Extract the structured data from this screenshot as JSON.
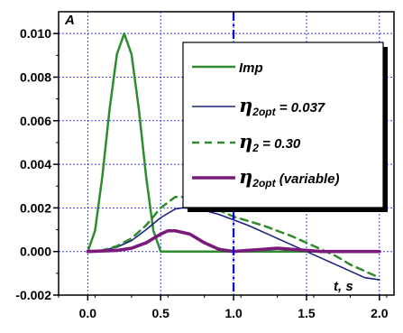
{
  "chart_data": {
    "type": "line",
    "title": "",
    "xlabel": "t, s",
    "ylabel": "A",
    "xlim": [
      -0.2,
      2.1
    ],
    "ylim": [
      -0.002,
      0.011
    ],
    "x_ticks": [
      "0.0",
      "0.5",
      "1.0",
      "1.5",
      "2.0"
    ],
    "y_ticks": [
      "-0.002",
      "0.000",
      "0.002",
      "0.004",
      "0.006",
      "0.008",
      "0.010"
    ],
    "grid": true,
    "vertical_marker_x": 1.0,
    "legend_placement": "top-right",
    "colors": {
      "imp": "#2e8b2e",
      "eta_opt": "#1a237e",
      "eta_fixed": "#2e8b2e",
      "eta_variable": "#7a1a7a",
      "grid": "#3a3aff",
      "marker": "#0000dd"
    },
    "series": [
      {
        "name": "Imp",
        "style": "solid",
        "x": [
          0.0,
          0.05,
          0.1,
          0.15,
          0.2,
          0.25,
          0.3,
          0.35,
          0.4,
          0.45,
          0.5,
          0.52,
          0.55,
          1.0,
          1.5,
          2.0
        ],
        "y": [
          0.0,
          0.00095,
          0.00345,
          0.00655,
          0.00905,
          0.01,
          0.00905,
          0.00655,
          0.00345,
          0.00095,
          0.0,
          0.0,
          0.0,
          0.0,
          0.0,
          0.0
        ]
      },
      {
        "name_parts": [
          "η",
          "2opt",
          " = 0.037"
        ],
        "style": "solid",
        "x": [
          0.0,
          0.1,
          0.2,
          0.3,
          0.4,
          0.5,
          0.6,
          0.65,
          0.7,
          0.8,
          0.9,
          1.0,
          1.1,
          1.2,
          1.3,
          1.4,
          1.5,
          1.6,
          1.7,
          1.8,
          1.9,
          2.0
        ],
        "y": [
          0.0,
          5e-05,
          0.0002,
          0.0005,
          0.001,
          0.00155,
          0.00195,
          0.002,
          0.00198,
          0.00188,
          0.0017,
          0.00145,
          0.0012,
          0.0009,
          0.0006,
          0.0003,
          0.0,
          -0.0003,
          -0.0006,
          -0.0009,
          -0.0012,
          -0.0013
        ]
      },
      {
        "name_parts": [
          "η",
          "2",
          " = 0.30"
        ],
        "style": "dashed",
        "x": [
          0.0,
          0.1,
          0.2,
          0.3,
          0.4,
          0.5,
          0.6,
          0.7,
          0.8,
          0.9,
          1.0,
          1.1,
          1.2,
          1.3,
          1.4,
          1.5,
          1.6,
          1.7,
          1.8,
          1.9,
          2.0
        ],
        "y": [
          0.0,
          5e-05,
          0.00025,
          0.0006,
          0.0012,
          0.002,
          0.0025,
          0.0025,
          0.00225,
          0.0019,
          0.0016,
          0.0014,
          0.0012,
          0.00095,
          0.0007,
          0.0004,
          0.0001,
          -0.0002,
          -0.0006,
          -0.0009,
          -0.0012
        ]
      },
      {
        "name_parts": [
          "η",
          "2opt",
          " (variable)"
        ],
        "style": "solid-thick",
        "x": [
          0.0,
          0.2,
          0.3,
          0.4,
          0.5,
          0.55,
          0.6,
          0.7,
          0.8,
          0.9,
          1.0,
          1.1,
          1.2,
          1.3,
          1.4,
          1.5,
          1.6,
          1.7,
          1.8,
          1.9,
          2.0
        ],
        "y": [
          0.0,
          5e-05,
          0.00015,
          0.0004,
          0.0008,
          0.00095,
          0.00095,
          0.0008,
          0.0004,
          0.0001,
          0.0,
          5e-05,
          0.0001,
          0.00015,
          0.0001,
          5e-05,
          0.0,
          0.0,
          0.0,
          0.0,
          0.0
        ]
      }
    ]
  }
}
